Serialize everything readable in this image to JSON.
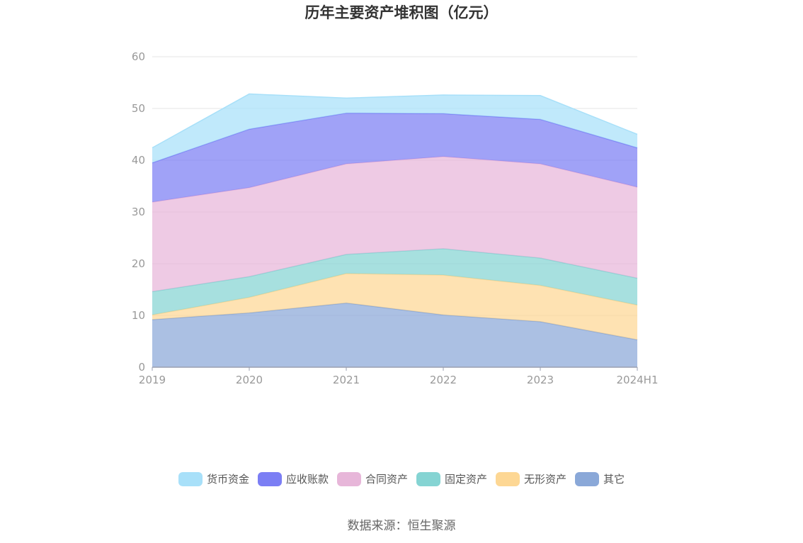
{
  "chart_data": {
    "type": "area",
    "stacked": true,
    "title": "历年主要资产堆积图（亿元）",
    "x": [
      "2019",
      "2020",
      "2021",
      "2022",
      "2023",
      "2024H1"
    ],
    "ylim": [
      0,
      60
    ],
    "yticks": [
      0,
      10,
      20,
      30,
      40,
      50,
      60
    ],
    "grid": true,
    "legend_position": "bottom",
    "series": [
      {
        "name": "其它",
        "color": "#8aa8d8",
        "values": [
          9.2,
          10.5,
          12.4,
          10.1,
          8.8,
          5.3
        ]
      },
      {
        "name": "无形资产",
        "color": "#fdd794",
        "values": [
          0.9,
          3.0,
          5.7,
          7.7,
          7.0,
          6.7
        ]
      },
      {
        "name": "固定资产",
        "color": "#85d4d3",
        "values": [
          4.5,
          4.0,
          3.7,
          5.1,
          5.3,
          5.2
        ]
      },
      {
        "name": "合同资产",
        "color": "#e7b6d9",
        "values": [
          17.3,
          17.2,
          17.5,
          17.8,
          18.2,
          17.6
        ]
      },
      {
        "name": "应收账款",
        "color": "#7b7ef4",
        "values": [
          7.6,
          11.3,
          9.8,
          8.3,
          8.6,
          7.6
        ]
      },
      {
        "name": "货币资金",
        "color": "#a8e0f9",
        "values": [
          2.9,
          6.8,
          2.9,
          3.6,
          4.6,
          2.6
        ]
      }
    ],
    "legend_order": [
      "货币资金",
      "应收账款",
      "合同资产",
      "固定资产",
      "无形资产",
      "其它"
    ]
  },
  "source": "数据来源：恒生聚源"
}
